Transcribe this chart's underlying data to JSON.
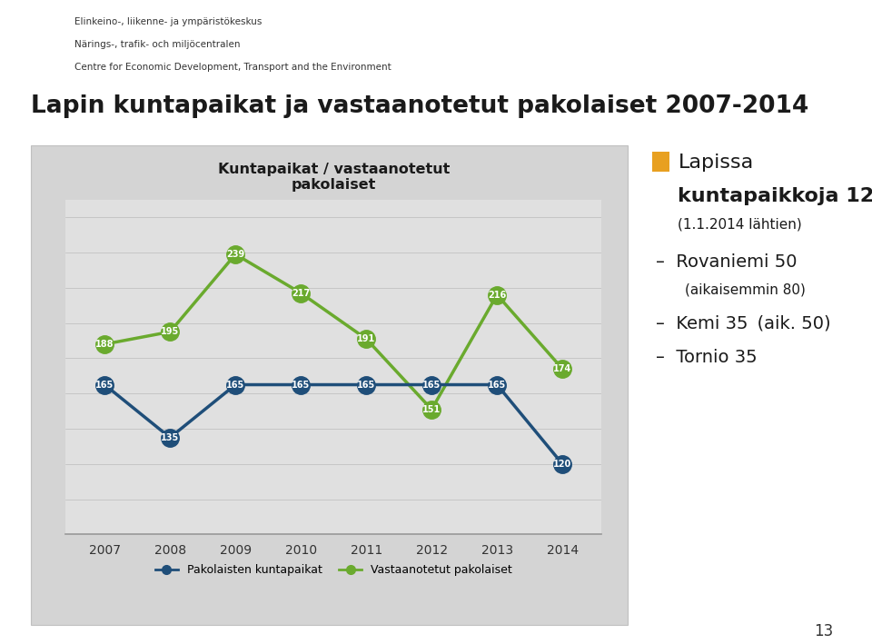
{
  "title": "Lapin kuntapaikat ja vastaanotetut pakolaiset 2007-2014",
  "chart_title": "Kuntapaikat / vastaanotetut\npakolaiset",
  "years": [
    2007,
    2008,
    2009,
    2010,
    2011,
    2012,
    2013,
    2014
  ],
  "blue_series": [
    165,
    135,
    165,
    165,
    165,
    165,
    165,
    120
  ],
  "green_series": [
    188,
    195,
    239,
    217,
    191,
    151,
    216,
    174
  ],
  "blue_label": "Pakolaisten kuntapaikat",
  "green_label": "Vastaanotetut pakolaiset",
  "blue_color": "#1f4e79",
  "green_color": "#6aaa2e",
  "chart_panel_bg": "#d4d4d4",
  "chart_plot_bg": "#e8e8e8",
  "header_lines": [
    "Elinkeino-, liikenne- ja ympäristökeskus",
    "Närings-, trafik- och miljöcentralen",
    "Centre for Economic Development, Transport and the Environment"
  ],
  "bullet_color": "#e8a020",
  "page_number": "13",
  "ylim_low": 80,
  "ylim_high": 270
}
